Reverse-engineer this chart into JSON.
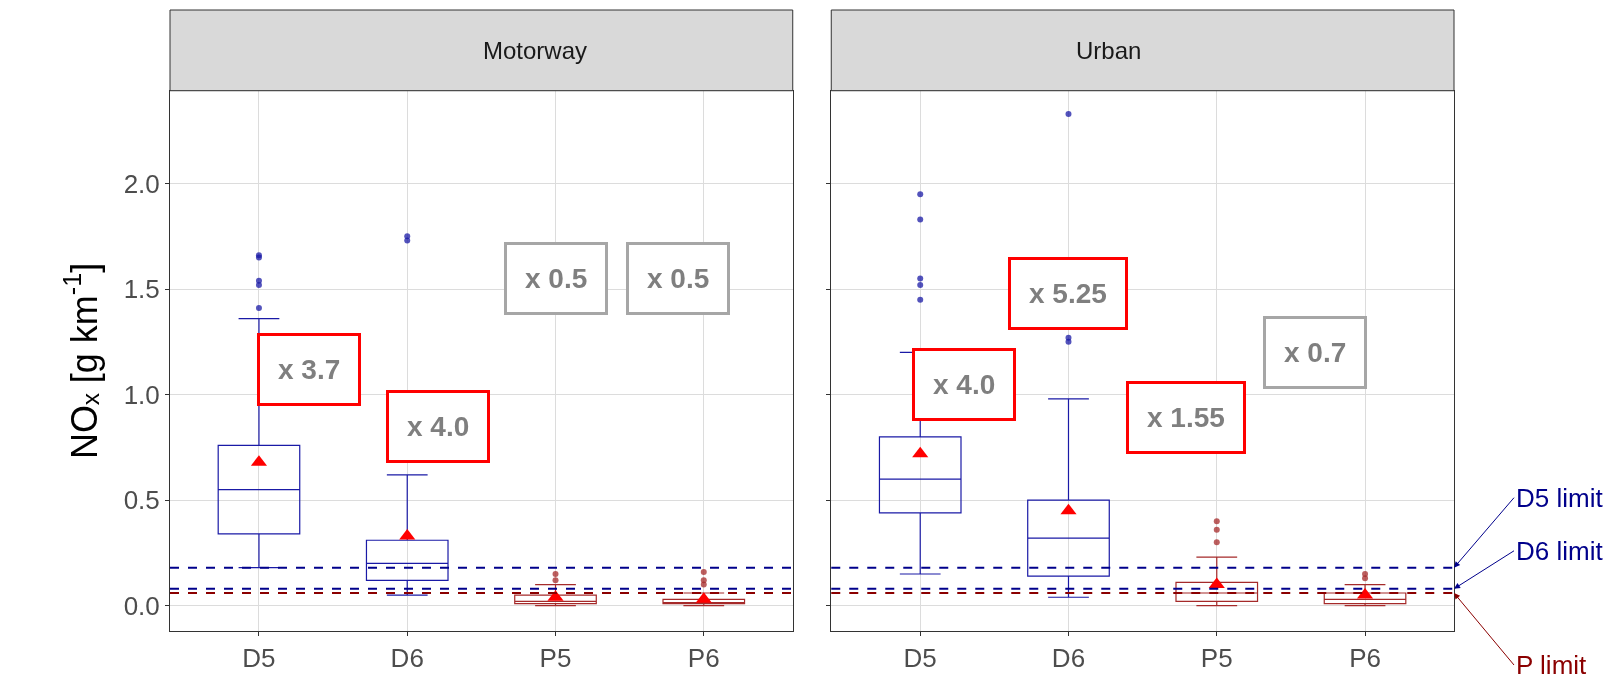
{
  "chart_data": [
    {
      "type": "box",
      "title": "Motorway",
      "ylabel": "NOₓ [g km$^{-1}$]",
      "categories": [
        "D5",
        "D6",
        "P5",
        "P6"
      ],
      "ylim": [
        -0.12,
        2.44
      ],
      "yticks": [
        {
          "value": 0,
          "label": "0.0"
        },
        0.5,
        {
          "value": 1,
          "label": "1.0"
        },
        1.5,
        {
          "value": 2,
          "label": "2.0"
        }
      ],
      "grid": true,
      "marker": "circle",
      "series": [
        {
          "color": "#1a1aa6",
          "boxes": [
            {
              "low": 0.18,
              "q1": 0.34,
              "median": 0.55,
              "q3": 0.76,
              "high": 1.36,
              "mean": 0.68,
              "outliers": [
                1.66,
                1.65,
                1.54,
                1.52,
                1.41
              ]
            },
            {
              "low": 0.05,
              "q1": 0.12,
              "median": 0.2,
              "q3": 0.31,
              "high": 0.62,
              "mean": 0.33,
              "outliers": [
                1.75,
                1.73
              ]
            },
            null,
            null
          ]
        },
        {
          "color": "#a52a2a",
          "boxes": [
            null,
            null,
            {
              "low": 0.0,
              "q1": 0.01,
              "median": 0.02,
              "q3": 0.05,
              "high": 0.1,
              "mean": 0.04,
              "outliers": [
                0.15,
                0.12
              ]
            },
            {
              "low": 0.0,
              "q1": 0.01,
              "median": 0.015,
              "q3": 0.03,
              "high": 0.06,
              "mean": 0.03,
              "outliers": [
                0.1,
                0.12,
                0.16
              ]
            }
          ]
        }
      ],
      "ref_lines": [
        {
          "axis": "y",
          "value": 0.18,
          "color": "#00008b",
          "line_style": "dashed"
        },
        {
          "axis": "y",
          "value": 0.08,
          "color": "#00008b",
          "line_style": "dashed"
        },
        {
          "axis": "y",
          "value": 0.06,
          "color": "#8b0000",
          "line_style": "dashed"
        }
      ],
      "annotations": [
        "x 3.7",
        "x 4.0",
        "x 0.5",
        "x 0.5"
      ]
    },
    {
      "type": "box",
      "title": "Urban",
      "categories": [
        "D5",
        "D6",
        "P5",
        "P6"
      ],
      "ylim": [
        -0.12,
        2.44
      ],
      "yticks": [
        {
          "value": 0,
          "label": null
        },
        {
          "value": 0.5,
          "label": null
        },
        {
          "value": 1,
          "label": null
        },
        {
          "value": 1.5,
          "label": null
        },
        {
          "value": 2,
          "label": null
        }
      ],
      "tick_labels": "x",
      "grid": true,
      "marker": "circle",
      "series": [
        {
          "color": "#1a1aa6",
          "boxes": [
            {
              "low": 0.15,
              "q1": 0.44,
              "median": 0.6,
              "q3": 0.8,
              "high": 1.2,
              "mean": 0.72,
              "outliers": [
                1.95,
                1.83,
                1.55,
                1.52,
                1.45
              ]
            },
            {
              "low": 0.04,
              "q1": 0.14,
              "median": 0.32,
              "q3": 0.5,
              "high": 0.98,
              "mean": 0.45,
              "outliers": [
                1.27,
                1.25,
                2.33
              ]
            },
            null,
            null
          ]
        },
        {
          "color": "#a52a2a",
          "boxes": [
            null,
            null,
            {
              "low": 0.0,
              "q1": 0.02,
              "median": 0.06,
              "q3": 0.11,
              "high": 0.23,
              "mean": 0.1,
              "outliers": [
                0.3,
                0.36,
                0.4
              ]
            },
            {
              "low": 0.0,
              "q1": 0.01,
              "median": 0.03,
              "q3": 0.06,
              "high": 0.1,
              "mean": 0.05,
              "outliers": [
                0.13,
                0.15
              ]
            }
          ]
        }
      ],
      "ref_lines": [
        {
          "axis": "y",
          "value": 0.18,
          "label": "D5 limit",
          "color": "#00008b",
          "line_style": "dashed"
        },
        {
          "axis": "y",
          "value": 0.08,
          "label": "D6 limit",
          "color": "#00008b",
          "line_style": "dashed"
        },
        {
          "axis": "y",
          "value": 0.06,
          "label": "P limit",
          "color": "#8b0000",
          "line_style": "dashed"
        }
      ],
      "annotations": [
        "x 4.0",
        "x 5.25",
        "x 1.55",
        "x 0.7"
      ]
    }
  ]
}
